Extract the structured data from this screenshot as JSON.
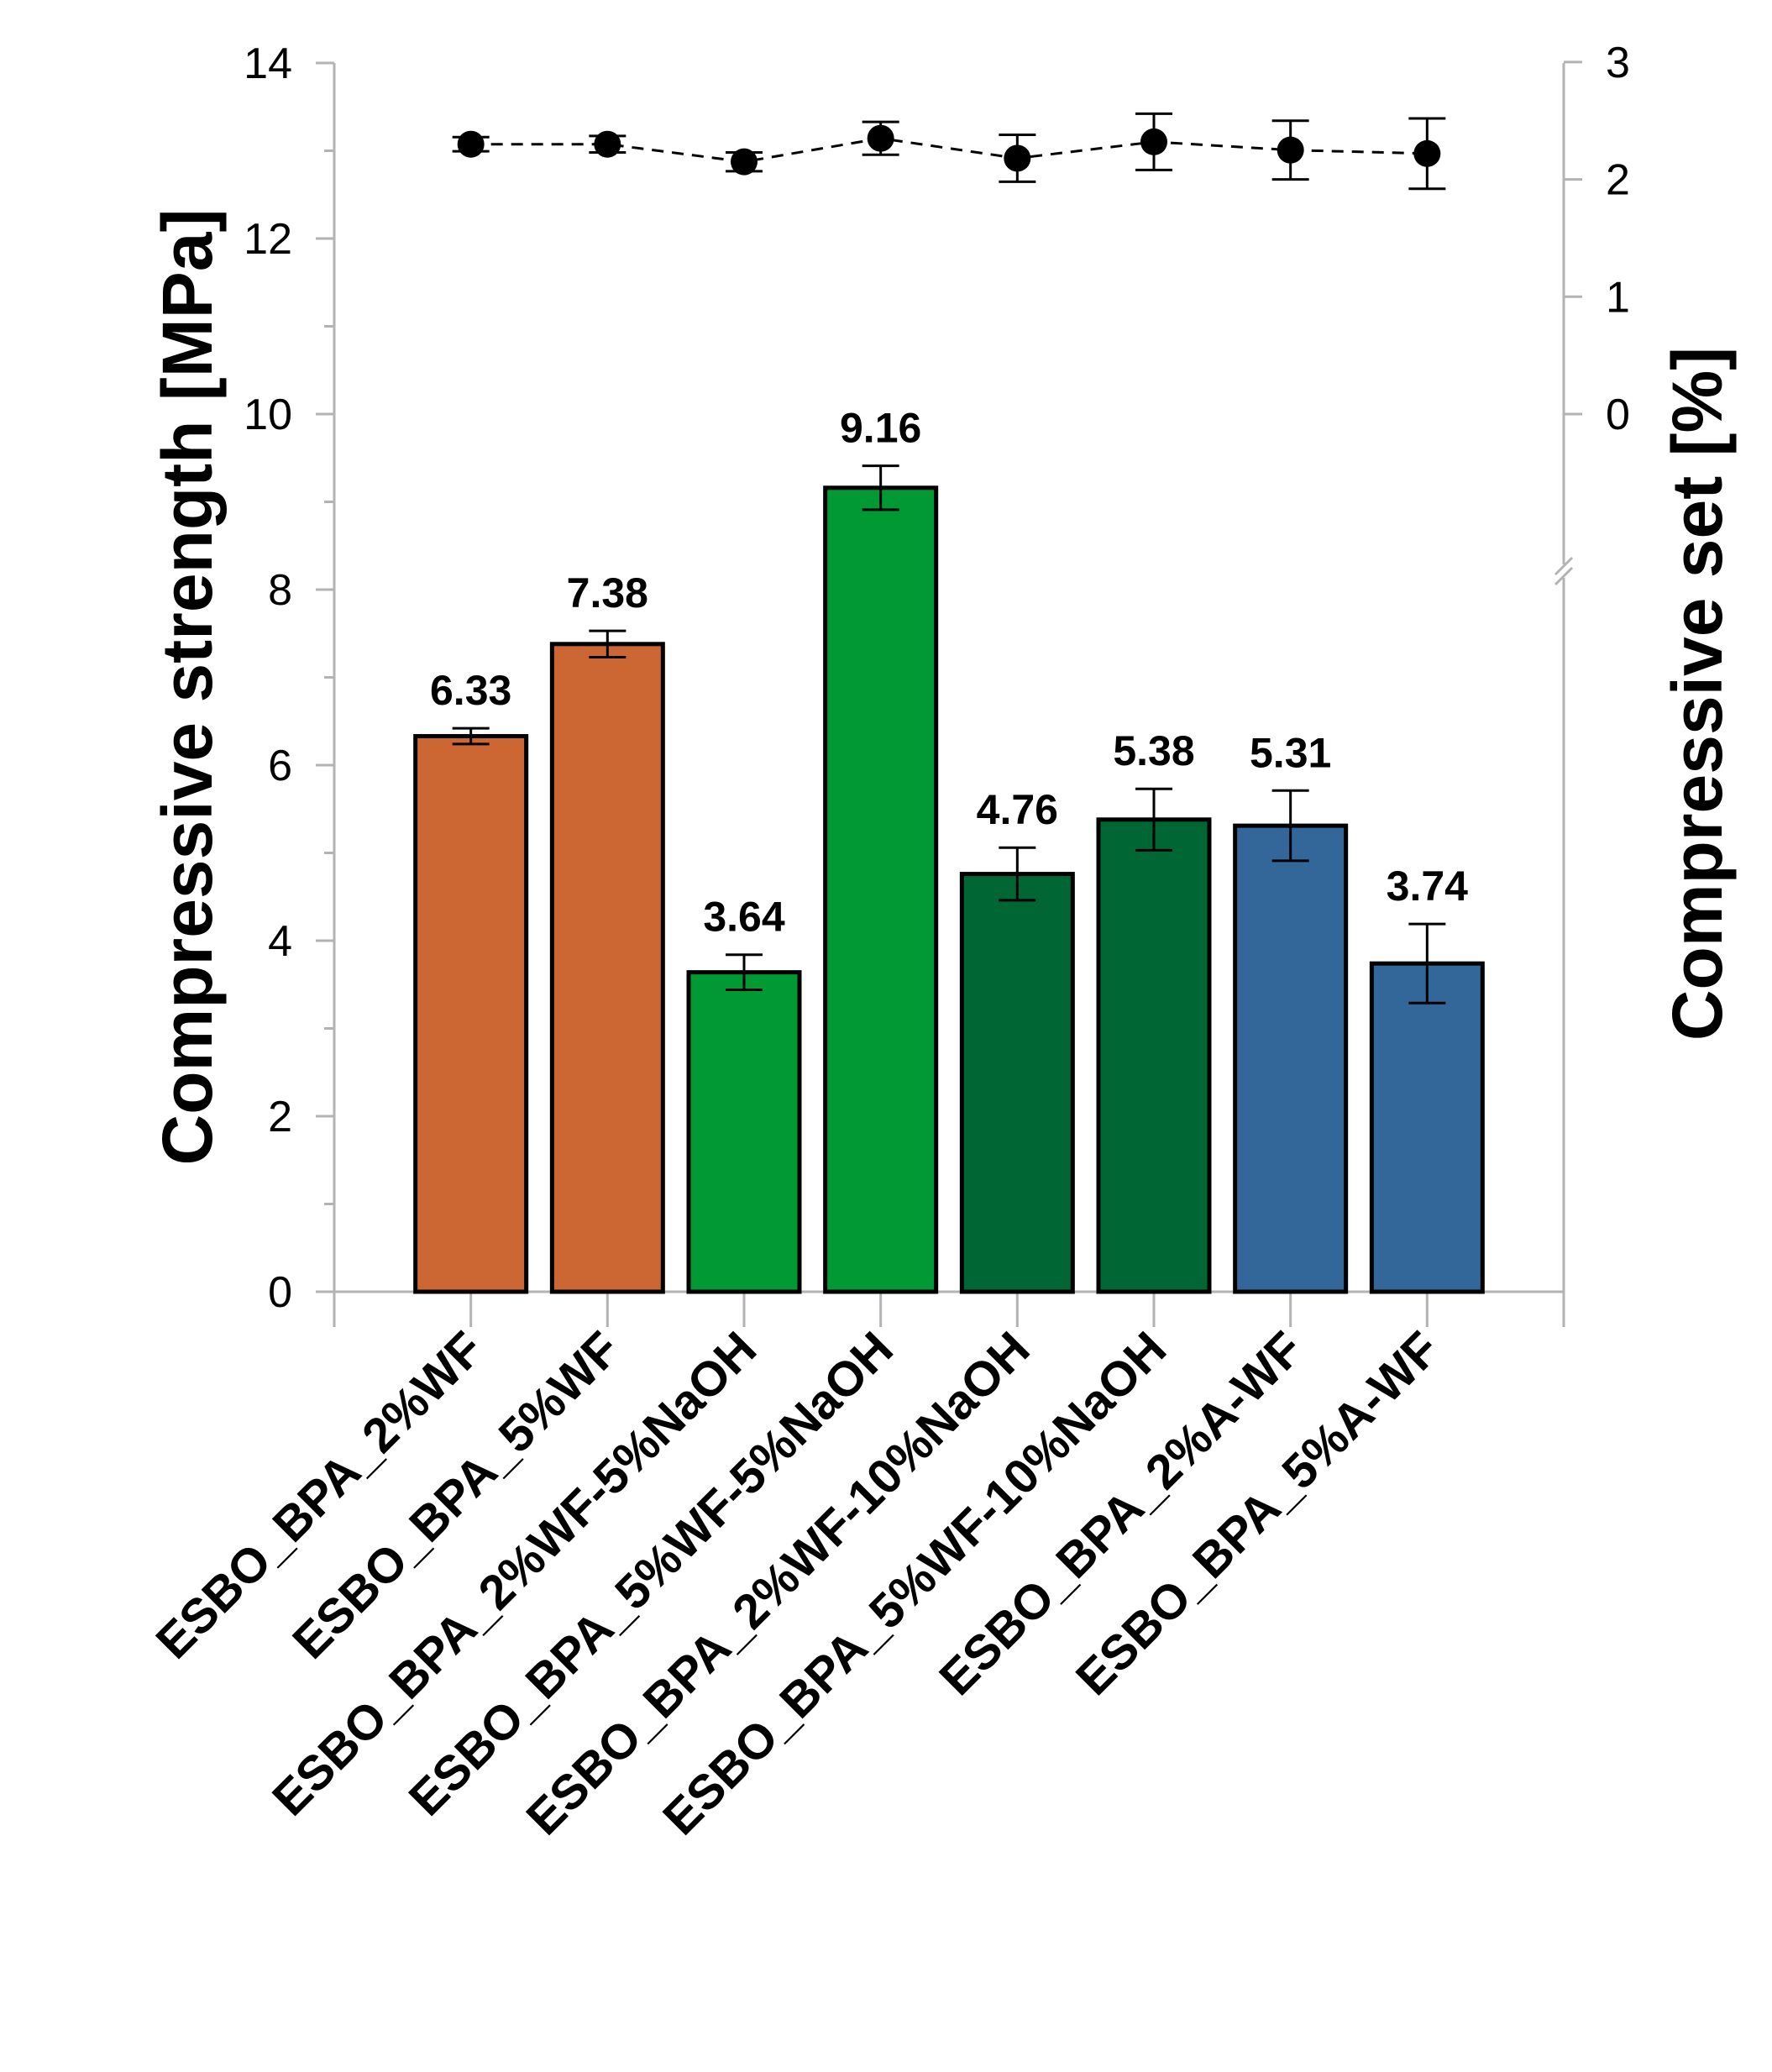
{
  "chart_data": {
    "type": "bar",
    "categories": [
      "ESBO_BPA_2%WF",
      "ESBO_BPA_5%WF",
      "ESBO_BPA_2%WF-5%NaOH",
      "ESBO_BPA_5%WF-5%NaOH",
      "ESBO_BPA_2%WF-10%NaOH",
      "ESBO_BPA_5%WF-10%NaOH",
      "ESBO_BPA_2%A-WF",
      "ESBO_BPA_5%A-WF"
    ],
    "series": [
      {
        "axis": "left",
        "type": "bar",
        "values": [
          6.33,
          7.38,
          3.64,
          9.16,
          4.76,
          5.38,
          5.31,
          3.74
        ],
        "errors": [
          0.09,
          0.15,
          0.2,
          0.25,
          0.3,
          0.35,
          0.4,
          0.45
        ],
        "value_labels": [
          "6.33",
          "7.38",
          "3.64",
          "9.16",
          "4.76",
          "5.38",
          "5.31",
          "3.74"
        ],
        "colors": [
          "#CC6633",
          "#CC6633",
          "#009933",
          "#009933",
          "#006633",
          "#006633",
          "#336699",
          "#336699"
        ]
      },
      {
        "axis": "right",
        "type": "line",
        "marker": "circle",
        "line_style": "dashed",
        "values": [
          2.3,
          2.3,
          2.15,
          2.35,
          2.18,
          2.32,
          2.25,
          2.22
        ],
        "errors": [
          0.06,
          0.07,
          0.08,
          0.14,
          0.2,
          0.24,
          0.25,
          0.3
        ]
      }
    ],
    "ylabel": "Compressive strength [MPa]",
    "ylim": [
      0,
      14
    ],
    "yticks": [
      "0",
      "2",
      "4",
      "6",
      "8",
      "10",
      "12",
      "14"
    ],
    "y2label": "Compressive set [%]",
    "y2ticks": [
      "0",
      "1",
      "2",
      "3"
    ],
    "y2lim": [
      0,
      3
    ],
    "y2_axis_break": true,
    "grid": false,
    "legend": "none"
  }
}
